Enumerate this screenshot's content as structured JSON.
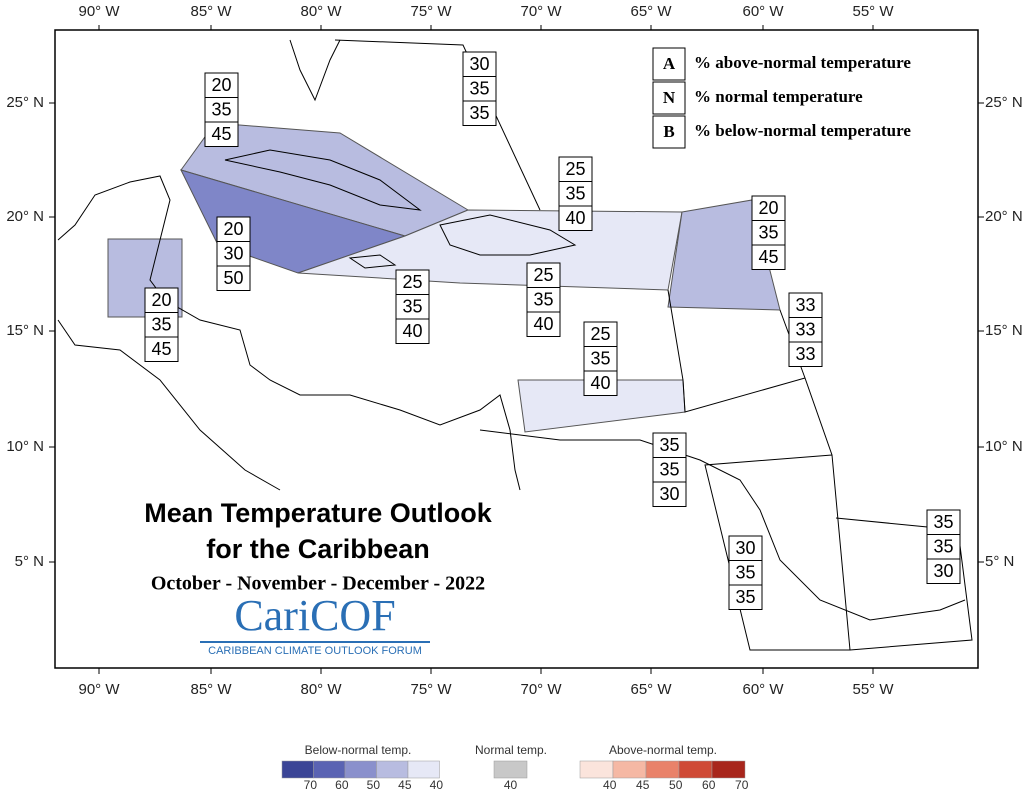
{
  "map": {
    "lon_labels": [
      "90° W",
      "85° W",
      "80° W",
      "75° W",
      "70° W",
      "65° W",
      "60° W",
      "55° W"
    ],
    "lat_labels": [
      "25° N",
      "20° N",
      "15° N",
      "10° N",
      "5° N"
    ],
    "key": [
      {
        "letter": "A",
        "text": "% above-normal temperature"
      },
      {
        "letter": "N",
        "text": "% normal temperature"
      },
      {
        "letter": "B",
        "text": "% below-normal temperature"
      }
    ],
    "regions": [
      {
        "values": [
          20,
          35,
          45
        ]
      },
      {
        "values": [
          30,
          35,
          35
        ]
      },
      {
        "values": [
          20,
          30,
          50
        ]
      },
      {
        "values": [
          20,
          35,
          45
        ]
      },
      {
        "values": [
          25,
          35,
          40
        ]
      },
      {
        "values": [
          25,
          35,
          40
        ]
      },
      {
        "values": [
          25,
          35,
          40
        ]
      },
      {
        "values": [
          20,
          35,
          45
        ]
      },
      {
        "values": [
          33,
          33,
          33
        ]
      },
      {
        "values": [
          25,
          35,
          40
        ]
      },
      {
        "values": [
          35,
          35,
          30
        ]
      },
      {
        "values": [
          30,
          35,
          35
        ]
      },
      {
        "values": [
          35,
          35,
          30
        ]
      }
    ],
    "title": "Mean Temperature Outlook",
    "subtitle": "for the Caribbean",
    "period": "October - November - December - 2022",
    "logo": {
      "name": "CariCOF",
      "tagline": "CARIBBEAN CLIMATE OUTLOOK FORUM"
    },
    "colorbar": {
      "below": {
        "label": "Below-normal temp.",
        "ticks": [
          70,
          60,
          50,
          45,
          40
        ],
        "colors": [
          "#3b4596",
          "#5a63b3",
          "#8a90cc",
          "#b8bce0",
          "#e6e8f6"
        ]
      },
      "normal": {
        "label": "Normal temp.",
        "ticks": [
          40
        ],
        "colors": [
          "#c8c8c8"
        ]
      },
      "above": {
        "label": "Above-normal temp.",
        "ticks": [
          40,
          45,
          50,
          60,
          70
        ],
        "colors": [
          "#fbe4dc",
          "#f5b8a4",
          "#e9826a",
          "#cf4a36",
          "#a8261c"
        ]
      }
    }
  }
}
